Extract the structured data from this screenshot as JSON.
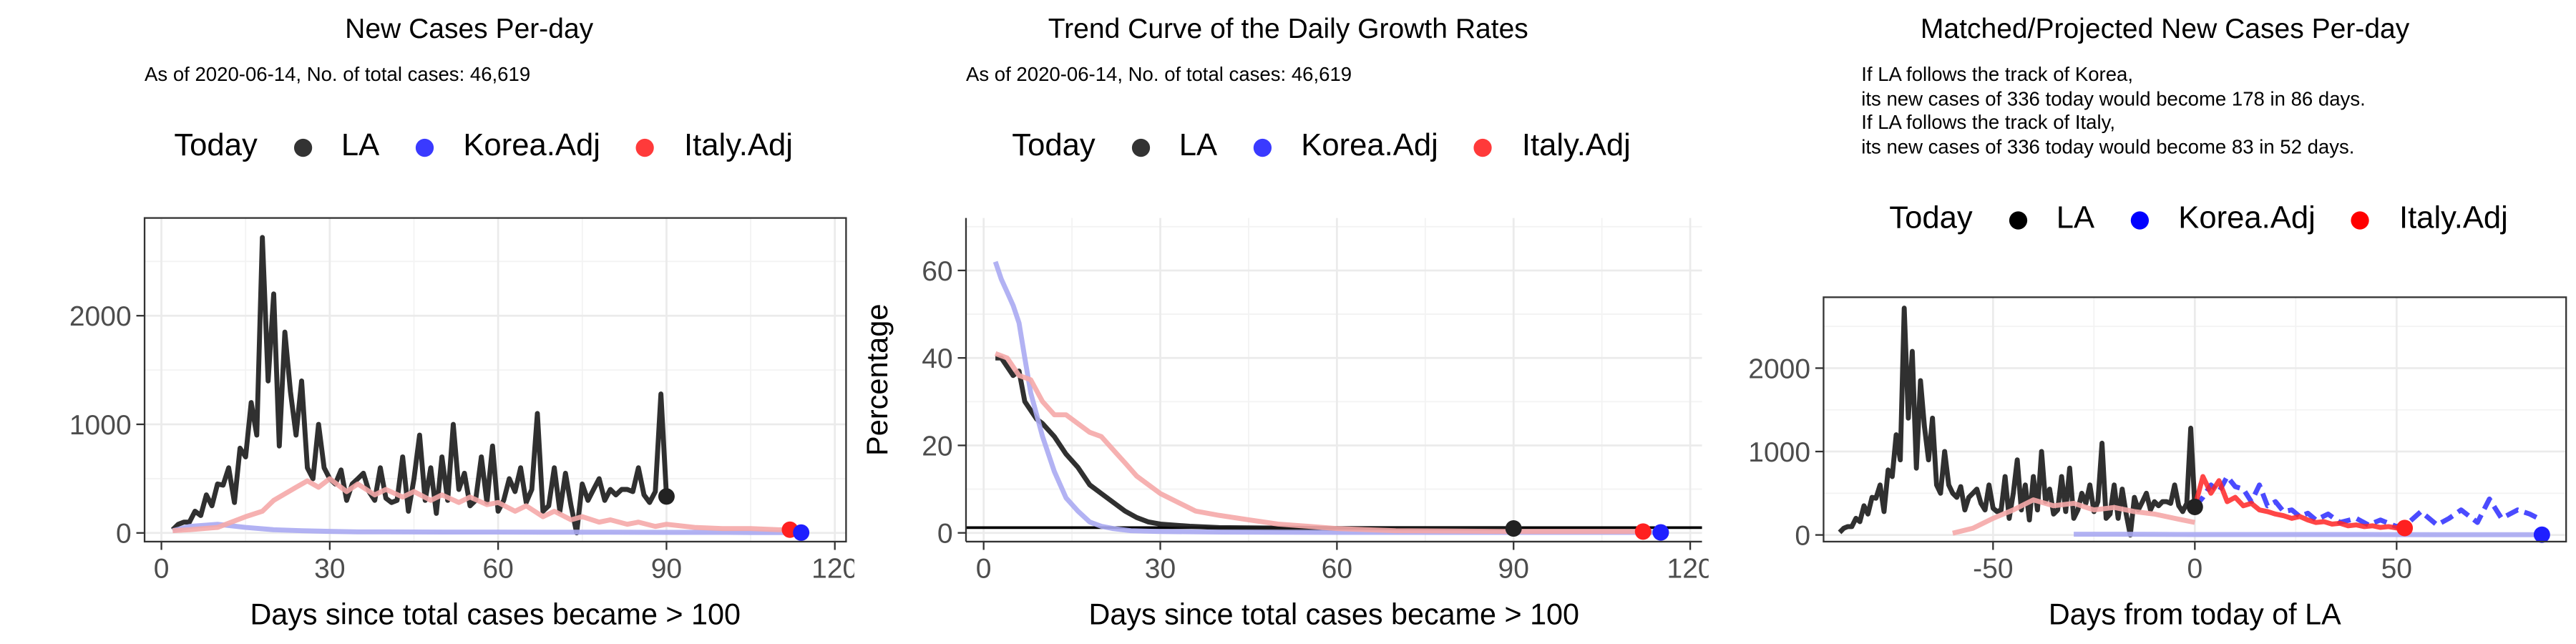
{
  "colors": {
    "la": "#1a1a1a",
    "korea": "#2b2bff",
    "italy": "#ff2626",
    "korea_faint": "#aaaaf2",
    "italy_faint": "#f5a8a8",
    "grid": "#ebebeb"
  },
  "chart_data": [
    {
      "type": "line",
      "title": "New Cases Per-day",
      "subtitle": "As of 2020-06-14, No. of total cases: 46,619",
      "legend": {
        "title": "Today",
        "entries": [
          "LA",
          "Korea.Adj",
          "Italy.Adj"
        ],
        "placement": "top"
      },
      "xlabel": "Days since total cases became > 100",
      "ylabel": "",
      "xlim": [
        -3,
        122
      ],
      "ylim": [
        -80,
        2900
      ],
      "xticks": [
        0,
        30,
        60,
        90,
        120
      ],
      "yticks": [
        0,
        1000,
        2000
      ],
      "series": [
        {
          "name": "LA",
          "x": [
            2,
            3,
            4,
            5,
            6,
            7,
            8,
            9,
            10,
            11,
            12,
            13,
            14,
            15,
            16,
            17,
            18,
            19,
            20,
            21,
            22,
            23,
            24,
            25,
            26,
            27,
            28,
            29,
            30,
            31,
            32,
            33,
            34,
            35,
            36,
            37,
            38,
            39,
            40,
            41,
            42,
            43,
            44,
            45,
            46,
            47,
            48,
            49,
            50,
            51,
            52,
            53,
            54,
            55,
            56,
            57,
            58,
            59,
            60,
            61,
            62,
            63,
            64,
            65,
            66,
            67,
            68,
            69,
            70,
            71,
            72,
            73,
            74,
            75,
            76,
            77,
            78,
            79,
            80,
            81,
            82,
            83,
            84,
            85,
            86,
            87,
            88,
            89,
            90
          ],
          "y": [
            30,
            80,
            100,
            100,
            200,
            160,
            350,
            250,
            450,
            440,
            600,
            280,
            780,
            700,
            1200,
            900,
            2720,
            1400,
            2200,
            800,
            1850,
            1300,
            900,
            1400,
            600,
            500,
            1000,
            600,
            500,
            450,
            580,
            300,
            450,
            500,
            550,
            380,
            300,
            600,
            320,
            280,
            300,
            700,
            200,
            500,
            900,
            300,
            600,
            180,
            700,
            300,
            1000,
            400,
            550,
            250,
            300,
            700,
            280,
            800,
            200,
            300,
            500,
            380,
            600,
            280,
            400,
            1100,
            200,
            250,
            600,
            200,
            550,
            250,
            0,
            450,
            300,
            400,
            500,
            300,
            400,
            350,
            400,
            400,
            380,
            600,
            350,
            280,
            380,
            1280,
            336
          ]
        },
        {
          "name": "Korea.Adj",
          "x": [
            2,
            5,
            10,
            15,
            20,
            25,
            30,
            35,
            40,
            50,
            60,
            70,
            80,
            90,
            100,
            105,
            110,
            114
          ],
          "y": [
            20,
            60,
            80,
            50,
            30,
            20,
            15,
            10,
            10,
            8,
            8,
            6,
            6,
            5,
            5,
            4,
            4,
            3
          ]
        },
        {
          "name": "Italy.Adj",
          "x": [
            2,
            5,
            10,
            15,
            18,
            20,
            24,
            26,
            28,
            30,
            33,
            35,
            38,
            40,
            43,
            45,
            48,
            50,
            53,
            55,
            58,
            60,
            63,
            65,
            68,
            70,
            73,
            75,
            78,
            80,
            83,
            85,
            88,
            90,
            95,
            100,
            105,
            110,
            112
          ],
          "y": [
            20,
            30,
            50,
            150,
            200,
            300,
            420,
            480,
            420,
            500,
            380,
            450,
            350,
            400,
            330,
            380,
            300,
            350,
            280,
            330,
            260,
            280,
            200,
            250,
            150,
            200,
            120,
            150,
            100,
            120,
            80,
            100,
            60,
            80,
            50,
            40,
            40,
            30,
            30
          ]
        }
      ],
      "today_points": [
        {
          "name": "LA",
          "x": 90,
          "y": 336
        },
        {
          "name": "Italy.Adj",
          "x": 112,
          "y": 30
        },
        {
          "name": "Korea.Adj",
          "x": 114,
          "y": 3
        }
      ]
    },
    {
      "type": "line",
      "title": "Trend Curve of the Daily Growth Rates",
      "subtitle": "As of 2020-06-14, No. of total cases: 46,619",
      "legend": {
        "title": "Today",
        "entries": [
          "LA",
          "Korea.Adj",
          "Italy.Adj"
        ],
        "placement": "top"
      },
      "xlabel": "Days since total cases became > 100",
      "ylabel": "Percentage",
      "xlim": [
        -3,
        122
      ],
      "ylim": [
        -2,
        72
      ],
      "xticks": [
        0,
        30,
        60,
        90,
        120
      ],
      "yticks": [
        0,
        20,
        40,
        60
      ],
      "hline": 1.2,
      "series": [
        {
          "name": "LA",
          "x": [
            2,
            3,
            4,
            5,
            6,
            7,
            8,
            9,
            10,
            12,
            14,
            16,
            18,
            20,
            22,
            24,
            26,
            28,
            30,
            35,
            40,
            50,
            60,
            70,
            80,
            90
          ],
          "y": [
            40,
            40,
            38,
            36,
            37,
            30,
            28,
            26,
            25,
            22,
            18,
            15,
            11,
            9,
            7,
            5,
            3.5,
            2.5,
            2,
            1.5,
            1.2,
            1.1,
            1,
            1,
            1,
            1
          ]
        },
        {
          "name": "Korea.Adj",
          "x": [
            2,
            3,
            4,
            5,
            6,
            7,
            8,
            10,
            12,
            14,
            16,
            18,
            20,
            22,
            25,
            30,
            40,
            60,
            80,
            100,
            115
          ],
          "y": [
            62,
            58,
            55,
            52,
            48,
            40,
            32,
            22,
            14,
            8,
            5,
            2.5,
            1.5,
            1,
            0.5,
            0.3,
            0.2,
            0.1,
            0.1,
            0.1,
            0.1
          ]
        },
        {
          "name": "Italy.Adj",
          "x": [
            2,
            4,
            6,
            8,
            10,
            12,
            14,
            16,
            18,
            20,
            22,
            24,
            26,
            28,
            30,
            33,
            36,
            40,
            45,
            50,
            55,
            60,
            70,
            80,
            90,
            100,
            112
          ],
          "y": [
            41,
            40,
            36,
            35,
            30,
            27,
            27,
            25,
            23,
            22,
            19,
            16,
            13,
            11,
            9,
            7,
            5,
            4,
            3,
            2,
            1.5,
            1,
            0.5,
            0.4,
            0.3,
            0.3,
            0.3
          ]
        }
      ],
      "today_points": [
        {
          "name": "LA",
          "x": 90,
          "y": 1
        },
        {
          "name": "Italy.Adj",
          "x": 112,
          "y": 0.3
        },
        {
          "name": "Korea.Adj",
          "x": 115,
          "y": 0.1
        }
      ]
    },
    {
      "type": "line",
      "title": "Matched/Projected New Cases Per-day",
      "annotations": [
        "If LA follows the track of Korea,",
        "its new cases of 336 today would become 178 in 86 days.",
        "If LA follows the track of Italy,",
        "its new cases of 336 today would become 83 in 52 days."
      ],
      "legend": {
        "title": "Today",
        "entries": [
          "LA",
          "Korea.Adj",
          "Italy.Adj"
        ],
        "placement": "top"
      },
      "xlabel": "Days from today of LA",
      "ylabel": "",
      "xlim": [
        -92,
        92
      ],
      "ylim": [
        -80,
        2850
      ],
      "xticks": [
        -50,
        0,
        50
      ],
      "yticks": [
        0,
        1000,
        2000
      ],
      "series": [
        {
          "name": "LA",
          "x": [
            -88,
            -87,
            -86,
            -85,
            -84,
            -83,
            -82,
            -81,
            -80,
            -79,
            -78,
            -77,
            -76,
            -75,
            -74,
            -73,
            -72,
            -71,
            -70,
            -69,
            -68,
            -67,
            -66,
            -65,
            -64,
            -63,
            -62,
            -61,
            -60,
            -59,
            -58,
            -57,
            -56,
            -55,
            -54,
            -53,
            -52,
            -51,
            -50,
            -49,
            -48,
            -47,
            -46,
            -45,
            -44,
            -43,
            -42,
            -41,
            -40,
            -39,
            -38,
            -37,
            -36,
            -35,
            -34,
            -33,
            -32,
            -31,
            -30,
            -29,
            -28,
            -27,
            -26,
            -25,
            -24,
            -23,
            -22,
            -21,
            -20,
            -19,
            -18,
            -17,
            -16,
            -15,
            -14,
            -13,
            -12,
            -11,
            -10,
            -9,
            -8,
            -7,
            -6,
            -5,
            -4,
            -3,
            -2,
            -1,
            0
          ],
          "y": [
            30,
            80,
            100,
            100,
            200,
            160,
            350,
            250,
            450,
            440,
            600,
            280,
            780,
            700,
            1200,
            900,
            2720,
            1400,
            2200,
            800,
            1850,
            1300,
            900,
            1400,
            600,
            500,
            1000,
            600,
            500,
            450,
            580,
            300,
            450,
            500,
            550,
            380,
            300,
            600,
            320,
            280,
            300,
            700,
            200,
            500,
            900,
            300,
            600,
            180,
            700,
            300,
            1000,
            400,
            550,
            250,
            300,
            700,
            280,
            800,
            200,
            300,
            500,
            380,
            600,
            280,
            400,
            1100,
            200,
            250,
            600,
            200,
            550,
            250,
            0,
            450,
            300,
            400,
            500,
            300,
            400,
            350,
            400,
            400,
            380,
            600,
            350,
            280,
            380,
            1280,
            336
          ]
        },
        {
          "name": "Korea.Adj (past)",
          "x": [
            -30,
            -20,
            -10,
            0,
            20,
            40,
            60,
            80,
            86
          ],
          "y": [
            10,
            10,
            8,
            6,
            5,
            5,
            4,
            4,
            3
          ]
        },
        {
          "name": "Italy.Adj (past)",
          "x": [
            -60,
            -55,
            -50,
            -45,
            -40,
            -35,
            -30,
            -25,
            -20,
            -15,
            -10,
            -5,
            0
          ],
          "y": [
            20,
            80,
            200,
            300,
            420,
            350,
            380,
            300,
            330,
            280,
            250,
            200,
            150
          ]
        },
        {
          "name": "Korea.Adj projected",
          "x": [
            0,
            2,
            4,
            6,
            8,
            10,
            12,
            14,
            16,
            18,
            20,
            22,
            24,
            26,
            28,
            30,
            33,
            36,
            40,
            43,
            46,
            50,
            53,
            56,
            60,
            63,
            66,
            70,
            73,
            76,
            80,
            83,
            86
          ],
          "y": [
            336,
            450,
            600,
            520,
            700,
            580,
            550,
            400,
            600,
            350,
            400,
            280,
            300,
            220,
            260,
            180,
            250,
            150,
            200,
            120,
            180,
            100,
            150,
            280,
            120,
            200,
            300,
            150,
            430,
            200,
            300,
            250,
            178
          ]
        },
        {
          "name": "Italy.Adj projected",
          "x": [
            0,
            2,
            4,
            6,
            8,
            10,
            12,
            14,
            16,
            18,
            20,
            22,
            24,
            26,
            28,
            30,
            32,
            34,
            36,
            38,
            40,
            42,
            44,
            46,
            48,
            50,
            52
          ],
          "y": [
            336,
            700,
            500,
            650,
            400,
            450,
            350,
            380,
            300,
            280,
            250,
            230,
            200,
            220,
            180,
            150,
            160,
            130,
            140,
            110,
            120,
            100,
            110,
            90,
            100,
            85,
            83
          ]
        }
      ],
      "today_points": [
        {
          "name": "LA",
          "x": 0,
          "y": 336
        },
        {
          "name": "Italy.Adj",
          "x": 52,
          "y": 83
        },
        {
          "name": "Korea.Adj",
          "x": 86,
          "y": 3
        }
      ]
    }
  ]
}
